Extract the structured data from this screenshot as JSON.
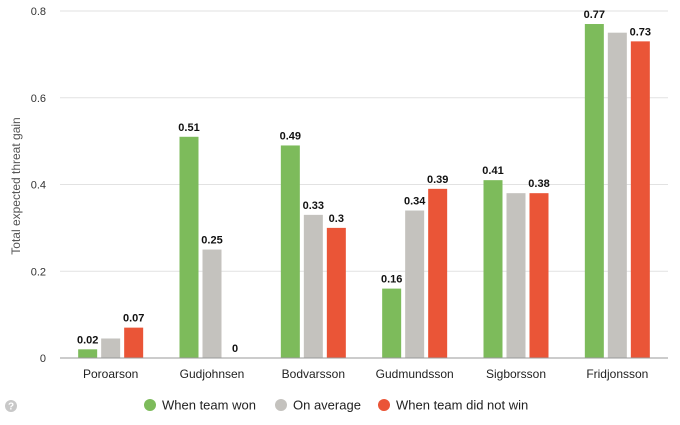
{
  "chart_data": {
    "type": "bar",
    "categories": [
      "Poroarson",
      "Gudjohnsen",
      "Bodvarsson",
      "Gudmundsson",
      "Sigborsson",
      "Fridjonsson"
    ],
    "series": [
      {
        "name": "When team won",
        "color": "#7dbb5b",
        "values": [
          0.02,
          0.51,
          0.49,
          0.16,
          0.41,
          0.77
        ],
        "labels": [
          "0.02",
          "0.51",
          "0.49",
          "0.16",
          "0.41",
          "0.77"
        ]
      },
      {
        "name": "On average",
        "color": "#c4c2be",
        "values": [
          0.045,
          0.25,
          0.33,
          0.34,
          0.38,
          0.75
        ],
        "labels": [
          "",
          "0.25",
          "0.33",
          "0.34",
          "",
          ""
        ]
      },
      {
        "name": "When team did not win",
        "color": "#ea5537",
        "values": [
          0.07,
          0,
          0.3,
          0.39,
          0.38,
          0.73
        ],
        "labels": [
          "0.07",
          "0",
          "0.3",
          "0.39",
          "0.38",
          "0.73"
        ]
      }
    ],
    "ylabel": "Total expected threat gain",
    "ylim": [
      0,
      0.8
    ],
    "yticks": [
      "0",
      "0.2",
      "0.4",
      "0.6",
      "0.8"
    ],
    "grid": true,
    "legend": "bottom-center"
  },
  "help_icon": "question-circle-icon",
  "help_symbol": "?"
}
